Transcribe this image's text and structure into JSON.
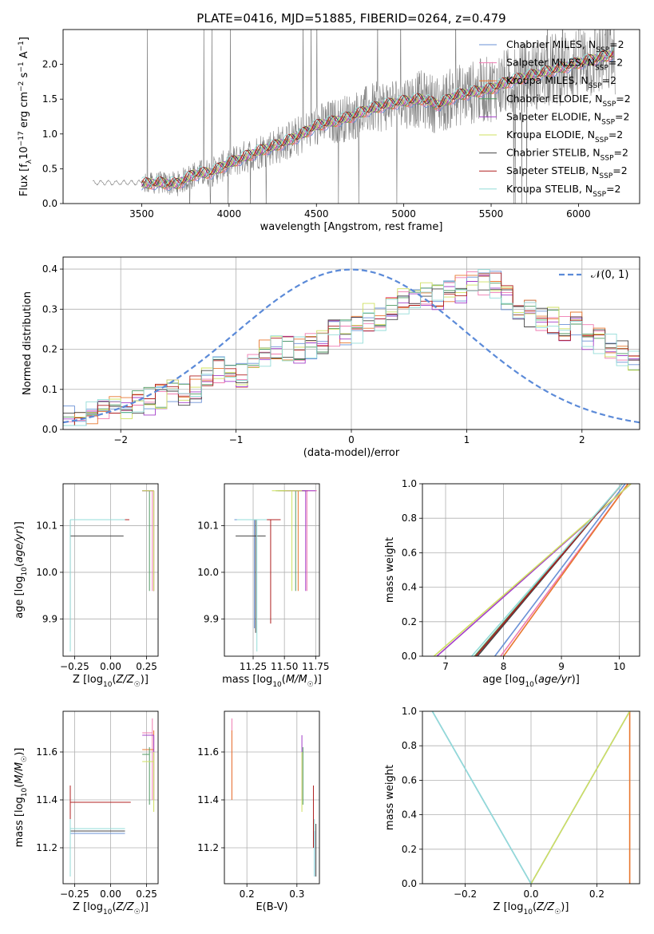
{
  "title": "PLATE=0416, MJD=51885, FIBERID=0264, z=0.479",
  "colors": {
    "Chabrier MILES": "#6a91d6",
    "Salpeter MILES": "#ef7ab0",
    "Kroupa MILES": "#e8772f",
    "Chabrier ELODIE": "#4f9a62",
    "Salpeter ELODIE": "#a43fc9",
    "Kroupa ELODIE": "#cfe060",
    "Chabrier STELIB": "#444444",
    "Salpeter STELIB": "#b02020",
    "Kroupa STELIB": "#93dcd8",
    "data": "#7f7f7f",
    "normal_curve": "#5b8ad8"
  },
  "legend_models": [
    {
      "name": "Chabrier MILES",
      "nssp": "2"
    },
    {
      "name": "Salpeter MILES",
      "nssp": "2"
    },
    {
      "name": "Kroupa MILES",
      "nssp": "2"
    },
    {
      "name": "Chabrier ELODIE",
      "nssp": "2"
    },
    {
      "name": "Salpeter ELODIE",
      "nssp": "2"
    },
    {
      "name": "Kroupa ELODIE",
      "nssp": "2"
    },
    {
      "name": "Chabrier STELIB",
      "nssp": "2"
    },
    {
      "name": "Salpeter STELIB",
      "nssp": "2"
    },
    {
      "name": "Kroupa STELIB",
      "nssp": "2"
    }
  ],
  "chart_data": [
    {
      "id": "spectrum",
      "type": "line",
      "title": "PLATE=0416, MJD=51885, FIBERID=0264, z=0.479",
      "xlabel": "wavelength [Angstrom, rest frame]",
      "ylabel": "Flux [f_λ 10^-17 erg cm^-2 s^-1 A^-1]",
      "xlim": [
        3050,
        6350
      ],
      "ylim": [
        0,
        2.5
      ],
      "xticks": [
        3500,
        4000,
        4500,
        5000,
        5500,
        6000
      ],
      "yticks": [
        0.0,
        0.5,
        1.0,
        1.5,
        2.0
      ],
      "grid": false,
      "legend_position": "top-right",
      "model_continuum": {
        "wavelength": [
          3500,
          3600,
          3700,
          3800,
          3900,
          4000,
          4100,
          4200,
          4300,
          4400,
          4500,
          4600,
          4700,
          4800,
          4900,
          5000,
          5100,
          5200,
          5300,
          5400,
          5500,
          5600,
          5700,
          5800,
          5900,
          6000,
          6100,
          6200
        ],
        "flux": [
          0.28,
          0.3,
          0.28,
          0.42,
          0.45,
          0.58,
          0.68,
          0.78,
          0.86,
          0.97,
          1.12,
          1.18,
          1.25,
          1.35,
          1.42,
          1.47,
          1.5,
          1.42,
          1.55,
          1.6,
          1.65,
          1.75,
          1.82,
          1.88,
          1.95,
          2.02,
          2.08,
          2.15
        ]
      },
      "observed_start_wavelength": 3220,
      "observed_start_flux": 0.3
    },
    {
      "id": "residuals",
      "type": "histogram",
      "xlabel": "(data-model)/error",
      "ylabel": "Normed distribution",
      "xlim": [
        -2.5,
        2.5
      ],
      "ylim": [
        0,
        0.43
      ],
      "xticks": [
        -2,
        -1,
        0,
        1,
        2
      ],
      "yticks": [
        0.0,
        0.1,
        0.2,
        0.3,
        0.4
      ],
      "grid": true,
      "legend": [
        "𝒩(0, 1)"
      ],
      "legend_position": "top-right",
      "bin_width": 0.1,
      "bin_start": -2.5,
      "mean_histogram": [
        0.03,
        0.03,
        0.04,
        0.05,
        0.05,
        0.06,
        0.07,
        0.07,
        0.08,
        0.09,
        0.09,
        0.1,
        0.12,
        0.15,
        0.15,
        0.14,
        0.16,
        0.19,
        0.21,
        0.2,
        0.2,
        0.21,
        0.22,
        0.24,
        0.24,
        0.25,
        0.28,
        0.28,
        0.3,
        0.32,
        0.33,
        0.34,
        0.33,
        0.34,
        0.35,
        0.36,
        0.37,
        0.36,
        0.33,
        0.3,
        0.29,
        0.28,
        0.27,
        0.25,
        0.26,
        0.23,
        0.22,
        0.21,
        0.19,
        0.17
      ],
      "normal_curve": "N(0,1)"
    },
    {
      "id": "age-vs-Z",
      "type": "scatter",
      "xlabel": "Z [log10(Z/Z☉)]",
      "ylabel": "age  [log10(age/yr)]",
      "xlim": [
        -0.33,
        0.33
      ],
      "ylim": [
        9.82,
        10.19
      ],
      "xticks": [
        -0.25,
        0.0,
        0.25
      ],
      "yticks": [
        9.9,
        10.0,
        10.1
      ],
      "grid": true
    },
    {
      "id": "age-vs-mass",
      "type": "scatter",
      "xlabel": "mass [log10(M/M☉)]",
      "ylabel": "",
      "xlim": [
        11.02,
        11.78
      ],
      "ylim": [
        9.82,
        10.19
      ],
      "xticks": [
        11.25,
        11.5,
        11.75
      ],
      "yticks": [
        9.9,
        10.0,
        10.1
      ],
      "grid": true
    },
    {
      "id": "weight-vs-age",
      "type": "line",
      "xlabel": "age  [log10(age/yr)]",
      "ylabel": "mass weight",
      "xlim": [
        6.6,
        10.35
      ],
      "ylim": [
        0,
        1.0
      ],
      "xticks": [
        7,
        8,
        9,
        10
      ],
      "yticks": [
        0.0,
        0.2,
        0.4,
        0.6,
        0.8,
        1.0
      ],
      "grid": true,
      "series": [
        {
          "name": "Chabrier MILES",
          "x": [
            7.85,
            10.1
          ],
          "y": [
            0,
            1.0
          ]
        },
        {
          "name": "Salpeter MILES",
          "x": [
            7.95,
            10.15
          ],
          "y": [
            0,
            1.0
          ]
        },
        {
          "name": "Kroupa MILES",
          "x": [
            8.0,
            10.15
          ],
          "y": [
            0,
            1.0
          ]
        },
        {
          "name": "Chabrier ELODIE",
          "x": [
            7.5,
            10.05
          ],
          "y": [
            0,
            1.0
          ]
        },
        {
          "name": "Salpeter ELODIE",
          "x": [
            6.85,
            10.2
          ],
          "y": [
            0,
            1.0
          ]
        },
        {
          "name": "Kroupa ELODIE",
          "x": [
            6.8,
            10.2
          ],
          "y": [
            0,
            1.0
          ]
        },
        {
          "name": "Chabrier STELIB",
          "x": [
            7.55,
            10.05
          ],
          "y": [
            0,
            1.0
          ]
        },
        {
          "name": "Salpeter STELIB",
          "x": [
            7.52,
            10.05
          ],
          "y": [
            0,
            1.0
          ]
        },
        {
          "name": "Kroupa STELIB",
          "x": [
            7.45,
            10.05
          ],
          "y": [
            0,
            1.0
          ]
        }
      ]
    },
    {
      "id": "mass-vs-Z",
      "type": "scatter",
      "xlabel": "Z [log10(Z/Z☉)]",
      "ylabel": "mass [log10(M/M☉)]",
      "xlim": [
        -0.33,
        0.33
      ],
      "ylim": [
        11.05,
        11.77
      ],
      "xticks": [
        -0.25,
        0.0,
        0.25
      ],
      "yticks": [
        11.2,
        11.4,
        11.6
      ],
      "grid": true
    },
    {
      "id": "mass-vs-EBV",
      "type": "scatter",
      "xlabel": "E(B-V)",
      "ylabel": "",
      "xlim": [
        0.155,
        0.345
      ],
      "ylim": [
        11.05,
        11.77
      ],
      "xticks": [
        0.2,
        0.3
      ],
      "yticks": [
        11.2,
        11.4,
        11.6
      ],
      "grid": true
    },
    {
      "id": "weight-vs-Z",
      "type": "line",
      "xlabel": "Z [log10(Z/Z☉)]",
      "ylabel": "mass weight",
      "xlim": [
        -0.33,
        0.33
      ],
      "ylim": [
        0,
        1.0
      ],
      "xticks": [
        -0.2,
        0.0,
        0.2
      ],
      "yticks": [
        0.0,
        0.2,
        0.4,
        0.6,
        0.8,
        1.0
      ],
      "grid": true,
      "series": [
        {
          "name": "Chabrier MILES",
          "x": [
            -0.3,
            0.0,
            0.3
          ],
          "y": [
            1.0,
            0.0,
            1.0
          ]
        },
        {
          "name": "Kroupa MILES",
          "x": [
            0.3,
            0.3
          ],
          "y": [
            0.0,
            1.0
          ]
        },
        {
          "name": "Kroupa ELODIE",
          "x": [
            0.0,
            0.3
          ],
          "y": [
            0.0,
            1.0
          ]
        },
        {
          "name": "Kroupa STELIB",
          "x": [
            -0.3,
            0.0
          ],
          "y": [
            1.0,
            0.0
          ]
        }
      ]
    }
  ],
  "ssp_points": [
    {
      "name": "Chabrier MILES",
      "Z": -0.28,
      "age": 10.113,
      "mass": 11.26,
      "age_lo": 9.88,
      "age_hi": 10.113,
      "mass_lo": 11.08,
      "mass_hi": 11.27,
      "ebv": 0.335
    },
    {
      "name": "Salpeter MILES",
      "Z": 0.29,
      "age": 10.175,
      "mass": 11.68,
      "age_lo": 9.96,
      "age_hi": 10.175,
      "mass_lo": 11.4,
      "mass_hi": 11.74,
      "ebv": 0.17
    },
    {
      "name": "Kroupa MILES",
      "Z": 0.3,
      "age": 10.175,
      "mass": 11.61,
      "age_lo": 9.96,
      "age_hi": 10.175,
      "mass_lo": 11.4,
      "mass_hi": 11.69,
      "ebv": 0.17
    },
    {
      "name": "Chabrier ELODIE",
      "Z": 0.27,
      "age": 10.175,
      "mass": 11.59,
      "age_lo": 9.96,
      "age_hi": 10.175,
      "mass_lo": 11.38,
      "mass_hi": 11.62,
      "ebv": 0.312
    },
    {
      "name": "Salpeter ELODIE",
      "Z": 0.3,
      "age": 10.175,
      "mass": 11.67,
      "age_lo": 9.96,
      "age_hi": 10.175,
      "mass_lo": 11.4,
      "mass_hi": 11.67,
      "ebv": 0.31
    },
    {
      "name": "Kroupa ELODIE",
      "Z": 0.3,
      "age": 10.175,
      "mass": 11.56,
      "age_lo": 9.96,
      "age_hi": 10.175,
      "mass_lo": 11.35,
      "mass_hi": 11.6,
      "ebv": 0.31
    },
    {
      "name": "Chabrier STELIB",
      "Z": -0.28,
      "age": 10.078,
      "mass": 11.27,
      "age_lo": 9.87,
      "age_hi": 10.113,
      "mass_lo": 11.08,
      "mass_hi": 11.3,
      "ebv": 0.338
    },
    {
      "name": "Salpeter STELIB",
      "Z": -0.28,
      "age": 10.113,
      "mass": 11.39,
      "age_lo": 9.89,
      "age_hi": 10.113,
      "mass_lo": 11.2,
      "mass_hi": 11.46,
      "ebv": 0.333
    },
    {
      "name": "Kroupa STELIB",
      "Z": -0.28,
      "age": 10.113,
      "mass": 11.28,
      "age_lo": 9.83,
      "age_hi": 10.113,
      "mass_lo": 11.08,
      "mass_hi": 11.32,
      "ebv": 0.335
    }
  ]
}
